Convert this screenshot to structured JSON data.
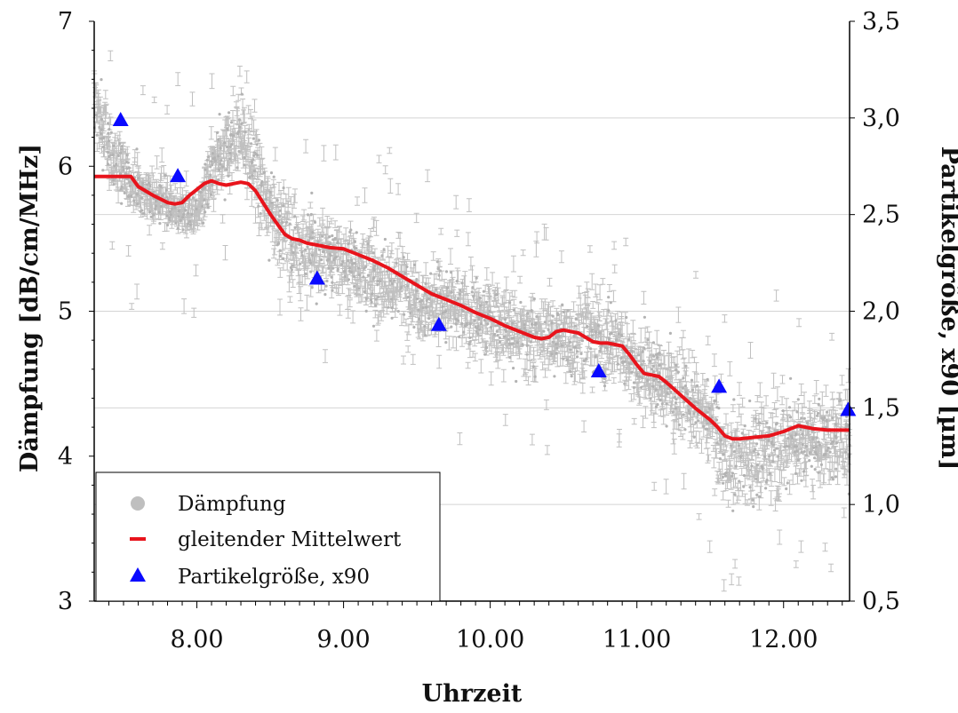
{
  "chart_data": {
    "type": "scatter",
    "xlabel": "Uhrzeit",
    "ylabel": "Dämpfung [dB/cm/MHz]",
    "y2label": "Partikelgröße, x90 [µm]",
    "xlim": [
      7.3,
      12.45
    ],
    "ylim": [
      3,
      7
    ],
    "y2lim": [
      0.5,
      3.5
    ],
    "x_ticks": [
      {
        "value": 8.0,
        "label": "8.00"
      },
      {
        "value": 9.0,
        "label": "9.00"
      },
      {
        "value": 10.0,
        "label": "10.00"
      },
      {
        "value": 11.0,
        "label": "11.00"
      },
      {
        "value": 12.0,
        "label": "12.00"
      }
    ],
    "y_ticks": [
      {
        "value": 3,
        "label": "3"
      },
      {
        "value": 4,
        "label": "4"
      },
      {
        "value": 5,
        "label": "5"
      },
      {
        "value": 6,
        "label": "6"
      },
      {
        "value": 7,
        "label": "7"
      }
    ],
    "y2_ticks": [
      {
        "value": 0.5,
        "label": "0,5"
      },
      {
        "value": 1.0,
        "label": "1,0"
      },
      {
        "value": 1.5,
        "label": "1,5"
      },
      {
        "value": 2.0,
        "label": "2,0"
      },
      {
        "value": 2.5,
        "label": "2,5"
      },
      {
        "value": 3.0,
        "label": "3,0"
      },
      {
        "value": 3.5,
        "label": "3,5"
      }
    ],
    "grid": "horizontal, right axis",
    "legend_position": "bottom-left",
    "legend": [
      {
        "label": "Dämpfung",
        "marker": "circle",
        "color": "#bfbfbf"
      },
      {
        "label": "gleitender Mittelwert",
        "marker": "line",
        "color": "#e8141c"
      },
      {
        "label": "Partikelgröße, x90",
        "marker": "triangle",
        "color": "#0a0aff"
      }
    ],
    "series": [
      {
        "name": "Dämpfung",
        "kind": "scatter-with-error-bars",
        "color": "#bfbfbf",
        "x": [
          7.3,
          7.4,
          7.5,
          7.6,
          7.7,
          7.8,
          7.9,
          8.0,
          8.1,
          8.2,
          8.3,
          8.4,
          8.5,
          8.6,
          8.7,
          8.8,
          8.9,
          9.0,
          9.1,
          9.2,
          9.3,
          9.4,
          9.5,
          9.6,
          9.7,
          9.8,
          9.9,
          10.0,
          10.1,
          10.2,
          10.3,
          10.4,
          10.5,
          10.6,
          10.7,
          10.8,
          10.9,
          11.0,
          11.1,
          11.2,
          11.3,
          11.4,
          11.5,
          11.6,
          11.7,
          11.8,
          11.9,
          12.0,
          12.1,
          12.2,
          12.3,
          12.4,
          12.45
        ],
        "y": [
          6.45,
          6.1,
          5.95,
          5.85,
          5.8,
          5.75,
          5.7,
          5.65,
          5.95,
          6.1,
          6.25,
          5.95,
          5.7,
          5.55,
          5.45,
          5.4,
          5.4,
          5.35,
          5.3,
          5.25,
          5.2,
          5.2,
          5.1,
          5.05,
          5.05,
          5.0,
          4.95,
          4.95,
          4.9,
          4.85,
          4.8,
          4.85,
          4.8,
          4.85,
          4.85,
          4.8,
          4.75,
          4.6,
          4.55,
          4.5,
          4.45,
          4.35,
          4.25,
          4.0,
          3.95,
          4.0,
          4.05,
          4.1,
          4.1,
          4.15,
          4.1,
          4.15,
          4.15
        ],
        "spread": [
          0.35,
          0.25,
          0.22,
          0.2,
          0.18,
          0.18,
          0.15,
          0.15,
          0.25,
          0.3,
          0.3,
          0.3,
          0.3,
          0.3,
          0.3,
          0.3,
          0.3,
          0.3,
          0.3,
          0.3,
          0.3,
          0.3,
          0.3,
          0.3,
          0.3,
          0.3,
          0.3,
          0.28,
          0.28,
          0.28,
          0.28,
          0.28,
          0.28,
          0.3,
          0.32,
          0.3,
          0.3,
          0.3,
          0.3,
          0.3,
          0.32,
          0.32,
          0.32,
          0.35,
          0.35,
          0.35,
          0.35,
          0.35,
          0.35,
          0.35,
          0.35,
          0.35,
          0.35
        ]
      },
      {
        "name": "gleitender Mittelwert",
        "kind": "line",
        "color": "#e8141c",
        "x": [
          7.3,
          7.55,
          7.6,
          7.7,
          7.8,
          7.85,
          7.9,
          7.95,
          8.0,
          8.05,
          8.1,
          8.15,
          8.2,
          8.25,
          8.3,
          8.35,
          8.4,
          8.45,
          8.5,
          8.55,
          8.6,
          8.65,
          8.7,
          8.75,
          8.8,
          8.85,
          8.9,
          9.0,
          9.1,
          9.2,
          9.3,
          9.4,
          9.5,
          9.6,
          9.7,
          9.8,
          9.9,
          10.0,
          10.1,
          10.2,
          10.3,
          10.35,
          10.4,
          10.45,
          10.5,
          10.55,
          10.6,
          10.65,
          10.7,
          10.75,
          10.8,
          10.85,
          10.9,
          10.95,
          11.0,
          11.05,
          11.1,
          11.15,
          11.2,
          11.3,
          11.4,
          11.5,
          11.55,
          11.6,
          11.65,
          11.7,
          11.8,
          11.9,
          12.0,
          12.05,
          12.1,
          12.2,
          12.3,
          12.45
        ],
        "y": [
          5.93,
          5.93,
          5.86,
          5.8,
          5.75,
          5.74,
          5.75,
          5.8,
          5.84,
          5.88,
          5.9,
          5.88,
          5.87,
          5.88,
          5.89,
          5.88,
          5.83,
          5.75,
          5.67,
          5.6,
          5.53,
          5.5,
          5.49,
          5.47,
          5.46,
          5.45,
          5.44,
          5.43,
          5.39,
          5.35,
          5.3,
          5.24,
          5.18,
          5.12,
          5.08,
          5.04,
          4.99,
          4.95,
          4.9,
          4.86,
          4.82,
          4.81,
          4.82,
          4.86,
          4.87,
          4.86,
          4.85,
          4.82,
          4.79,
          4.78,
          4.78,
          4.77,
          4.76,
          4.7,
          4.63,
          4.57,
          4.56,
          4.55,
          4.51,
          4.42,
          4.33,
          4.25,
          4.2,
          4.14,
          4.12,
          4.12,
          4.13,
          4.14,
          4.17,
          4.19,
          4.21,
          4.19,
          4.18,
          4.18
        ]
      },
      {
        "name": "Partikelgröße, x90",
        "kind": "scatter",
        "axis": "right",
        "color": "#0a0aff",
        "x": [
          7.48,
          7.87,
          8.82,
          9.65,
          10.74,
          11.56,
          12.44
        ],
        "y": [
          2.99,
          2.7,
          2.17,
          1.93,
          1.69,
          1.61,
          1.49
        ]
      }
    ]
  }
}
